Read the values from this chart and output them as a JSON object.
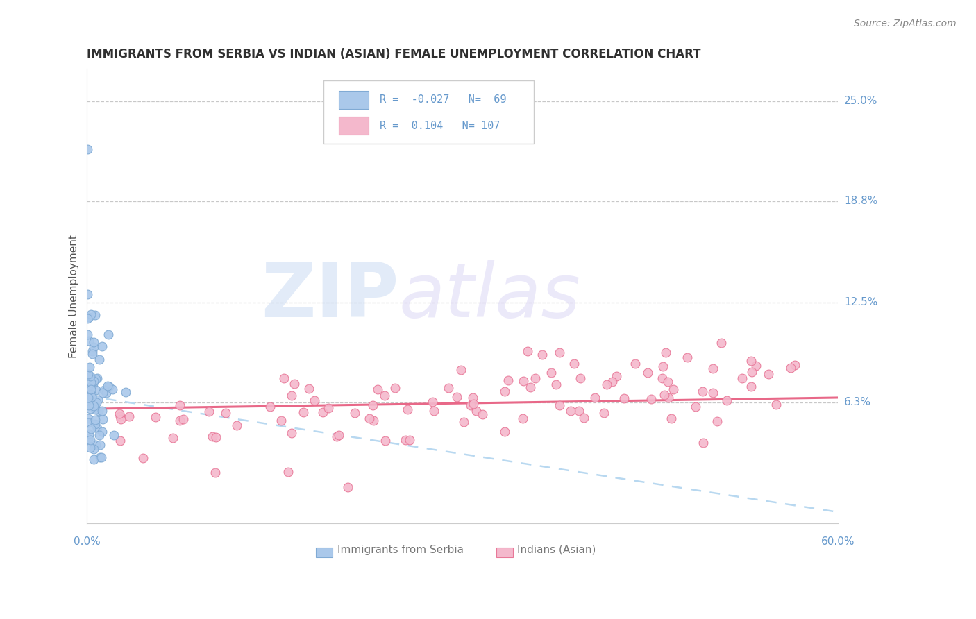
{
  "title": "IMMIGRANTS FROM SERBIA VS INDIAN (ASIAN) FEMALE UNEMPLOYMENT CORRELATION CHART",
  "source": "Source: ZipAtlas.com",
  "ylabel": "Female Unemployment",
  "ytick_labels": [
    "6.3%",
    "12.5%",
    "18.8%",
    "25.0%"
  ],
  "ytick_values": [
    0.063,
    0.125,
    0.188,
    0.25
  ],
  "xlim": [
    0.0,
    0.6
  ],
  "ylim": [
    -0.012,
    0.27
  ],
  "serbia_R": -0.027,
  "serbia_N": 69,
  "indian_R": 0.104,
  "indian_N": 107,
  "serbia_color": "#aac8ea",
  "serbia_edge": "#80aad4",
  "indian_color": "#f4b8cc",
  "indian_edge": "#e87898",
  "serbia_line_color": "#b8d8f0",
  "indian_line_color": "#e86888",
  "serbia_label": "Immigrants from Serbia",
  "indian_label": "Indians (Asian)",
  "title_color": "#303030",
  "source_color": "#888888",
  "axis_color": "#6699cc",
  "right_label_color": "#6699cc",
  "grid_color": "#c8c8c8",
  "legend_border": "#cccccc"
}
